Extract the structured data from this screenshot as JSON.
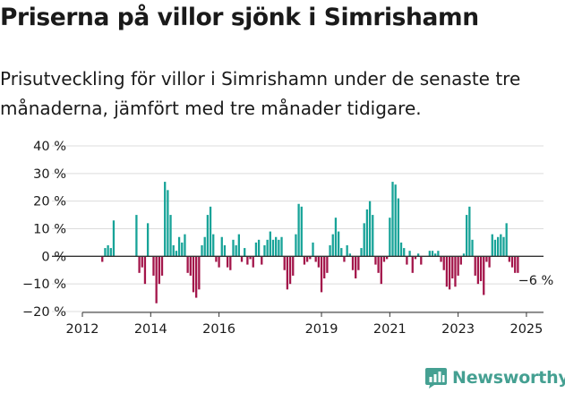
{
  "title": "Priserna på villor sjönk i Simrishamn",
  "subtitle": "Prisutveckling för villor i Simrishamn under de senaste tre månaderna, jämfört med tre månader tidigare.",
  "brand": {
    "name": "Newsworthy",
    "color": "#45a092",
    "icon": "bar-chart-logo-icon"
  },
  "colors": {
    "positive": "#17a398",
    "negative": "#a3154a",
    "grid": "#dcdcdc",
    "axis": "#333333",
    "text": "#1a1a1a"
  },
  "chart_data": {
    "type": "bar",
    "x_start": "2012-01",
    "x_end": "2025-07",
    "ylim": [
      -20,
      40
    ],
    "yticks": [
      {
        "value": 40,
        "label": "40 %"
      },
      {
        "value": 30,
        "label": "30 %"
      },
      {
        "value": 20,
        "label": "20 %"
      },
      {
        "value": 10,
        "label": "10 %"
      },
      {
        "value": 0,
        "label": "0 %"
      },
      {
        "value": -10,
        "label": "−10 %"
      },
      {
        "value": -20,
        "label": "−20 %"
      }
    ],
    "xticks": [
      {
        "label": "2012",
        "date": "2012-01"
      },
      {
        "label": "2014",
        "date": "2014-01"
      },
      {
        "label": "2016",
        "date": "2016-01"
      },
      {
        "label": "2019",
        "date": "2019-01"
      },
      {
        "label": "2021",
        "date": "2021-01"
      },
      {
        "label": "2023",
        "date": "2023-01"
      },
      {
        "label": "2025",
        "date": "2025-01"
      }
    ],
    "grid": true,
    "annotation": {
      "text": "−6 %",
      "date": "2025-04",
      "value": -6
    },
    "series": [
      {
        "points": [
          {
            "date": "2012-08",
            "value": -2
          },
          {
            "date": "2012-09",
            "value": 3
          },
          {
            "date": "2012-10",
            "value": 4
          },
          {
            "date": "2012-11",
            "value": 3
          },
          {
            "date": "2012-12",
            "value": 13
          },
          {
            "date": "2013-08",
            "value": 15
          },
          {
            "date": "2013-09",
            "value": -6
          },
          {
            "date": "2013-10",
            "value": -4
          },
          {
            "date": "2013-11",
            "value": -10
          },
          {
            "date": "2013-12",
            "value": 12
          },
          {
            "date": "2014-01",
            "value": 0
          },
          {
            "date": "2014-02",
            "value": -7
          },
          {
            "date": "2014-03",
            "value": -17
          },
          {
            "date": "2014-04",
            "value": -10
          },
          {
            "date": "2014-05",
            "value": -7
          },
          {
            "date": "2014-06",
            "value": 27
          },
          {
            "date": "2014-07",
            "value": 24
          },
          {
            "date": "2014-08",
            "value": 15
          },
          {
            "date": "2014-09",
            "value": 4
          },
          {
            "date": "2014-10",
            "value": 2
          },
          {
            "date": "2014-11",
            "value": 7
          },
          {
            "date": "2014-12",
            "value": 5
          },
          {
            "date": "2015-01",
            "value": 8
          },
          {
            "date": "2015-02",
            "value": -6
          },
          {
            "date": "2015-03",
            "value": -7
          },
          {
            "date": "2015-04",
            "value": -13
          },
          {
            "date": "2015-05",
            "value": -15
          },
          {
            "date": "2015-06",
            "value": -12
          },
          {
            "date": "2015-07",
            "value": 4
          },
          {
            "date": "2015-08",
            "value": 7
          },
          {
            "date": "2015-09",
            "value": 15
          },
          {
            "date": "2015-10",
            "value": 18
          },
          {
            "date": "2015-11",
            "value": 8
          },
          {
            "date": "2015-12",
            "value": -2
          },
          {
            "date": "2016-01",
            "value": -4
          },
          {
            "date": "2016-02",
            "value": 7
          },
          {
            "date": "2016-03",
            "value": 4
          },
          {
            "date": "2016-04",
            "value": -4
          },
          {
            "date": "2016-05",
            "value": -5
          },
          {
            "date": "2016-06",
            "value": 6
          },
          {
            "date": "2016-07",
            "value": 4
          },
          {
            "date": "2016-08",
            "value": 8
          },
          {
            "date": "2016-09",
            "value": -2
          },
          {
            "date": "2016-10",
            "value": 3
          },
          {
            "date": "2016-11",
            "value": -3
          },
          {
            "date": "2016-12",
            "value": -1
          },
          {
            "date": "2017-01",
            "value": -4
          },
          {
            "date": "2017-02",
            "value": 5
          },
          {
            "date": "2017-03",
            "value": 6
          },
          {
            "date": "2017-04",
            "value": -3
          },
          {
            "date": "2017-05",
            "value": 4
          },
          {
            "date": "2017-06",
            "value": 6
          },
          {
            "date": "2017-07",
            "value": 9
          },
          {
            "date": "2017-08",
            "value": 6
          },
          {
            "date": "2017-09",
            "value": 7
          },
          {
            "date": "2017-10",
            "value": 6
          },
          {
            "date": "2017-11",
            "value": 7
          },
          {
            "date": "2017-12",
            "value": -5
          },
          {
            "date": "2018-01",
            "value": -12
          },
          {
            "date": "2018-02",
            "value": -10
          },
          {
            "date": "2018-03",
            "value": -7
          },
          {
            "date": "2018-04",
            "value": 8
          },
          {
            "date": "2018-05",
            "value": 19
          },
          {
            "date": "2018-06",
            "value": 18
          },
          {
            "date": "2018-07",
            "value": -3
          },
          {
            "date": "2018-08",
            "value": -2
          },
          {
            "date": "2018-09",
            "value": -1
          },
          {
            "date": "2018-10",
            "value": 5
          },
          {
            "date": "2018-11",
            "value": -2
          },
          {
            "date": "2018-12",
            "value": -4
          },
          {
            "date": "2019-01",
            "value": -13
          },
          {
            "date": "2019-02",
            "value": -8
          },
          {
            "date": "2019-03",
            "value": -6
          },
          {
            "date": "2019-04",
            "value": 4
          },
          {
            "date": "2019-05",
            "value": 8
          },
          {
            "date": "2019-06",
            "value": 14
          },
          {
            "date": "2019-07",
            "value": 9
          },
          {
            "date": "2019-08",
            "value": 3
          },
          {
            "date": "2019-09",
            "value": -2
          },
          {
            "date": "2019-10",
            "value": 4
          },
          {
            "date": "2019-11",
            "value": 1
          },
          {
            "date": "2019-12",
            "value": -5
          },
          {
            "date": "2020-01",
            "value": -8
          },
          {
            "date": "2020-02",
            "value": -5
          },
          {
            "date": "2020-03",
            "value": 3
          },
          {
            "date": "2020-04",
            "value": 12
          },
          {
            "date": "2020-05",
            "value": 17
          },
          {
            "date": "2020-06",
            "value": 20
          },
          {
            "date": "2020-07",
            "value": 15
          },
          {
            "date": "2020-08",
            "value": -3
          },
          {
            "date": "2020-09",
            "value": -6
          },
          {
            "date": "2020-10",
            "value": -10
          },
          {
            "date": "2020-11",
            "value": -2
          },
          {
            "date": "2020-12",
            "value": -1
          },
          {
            "date": "2021-01",
            "value": 14
          },
          {
            "date": "2021-02",
            "value": 27
          },
          {
            "date": "2021-03",
            "value": 26
          },
          {
            "date": "2021-04",
            "value": 21
          },
          {
            "date": "2021-05",
            "value": 5
          },
          {
            "date": "2021-06",
            "value": 3
          },
          {
            "date": "2021-07",
            "value": -3
          },
          {
            "date": "2021-08",
            "value": 2
          },
          {
            "date": "2021-09",
            "value": -6
          },
          {
            "date": "2021-10",
            "value": -1
          },
          {
            "date": "2021-11",
            "value": 1
          },
          {
            "date": "2021-12",
            "value": -3
          },
          {
            "date": "2022-03",
            "value": 2
          },
          {
            "date": "2022-04",
            "value": 2
          },
          {
            "date": "2022-05",
            "value": 1
          },
          {
            "date": "2022-06",
            "value": 2
          },
          {
            "date": "2022-07",
            "value": -2
          },
          {
            "date": "2022-08",
            "value": -5
          },
          {
            "date": "2022-09",
            "value": -11
          },
          {
            "date": "2022-10",
            "value": -12
          },
          {
            "date": "2022-11",
            "value": -8
          },
          {
            "date": "2022-12",
            "value": -11
          },
          {
            "date": "2023-01",
            "value": -7
          },
          {
            "date": "2023-02",
            "value": -3
          },
          {
            "date": "2023-03",
            "value": 1
          },
          {
            "date": "2023-04",
            "value": 15
          },
          {
            "date": "2023-05",
            "value": 18
          },
          {
            "date": "2023-06",
            "value": 6
          },
          {
            "date": "2023-07",
            "value": -7
          },
          {
            "date": "2023-08",
            "value": -10
          },
          {
            "date": "2023-09",
            "value": -9
          },
          {
            "date": "2023-10",
            "value": -14
          },
          {
            "date": "2023-11",
            "value": -2
          },
          {
            "date": "2023-12",
            "value": -4
          },
          {
            "date": "2024-01",
            "value": 8
          },
          {
            "date": "2024-02",
            "value": 6
          },
          {
            "date": "2024-03",
            "value": 7
          },
          {
            "date": "2024-04",
            "value": 8
          },
          {
            "date": "2024-05",
            "value": 7
          },
          {
            "date": "2024-06",
            "value": 12
          },
          {
            "date": "2024-07",
            "value": -2
          },
          {
            "date": "2024-08",
            "value": -4
          },
          {
            "date": "2024-09",
            "value": -6
          },
          {
            "date": "2024-10",
            "value": -6
          }
        ]
      }
    ]
  }
}
